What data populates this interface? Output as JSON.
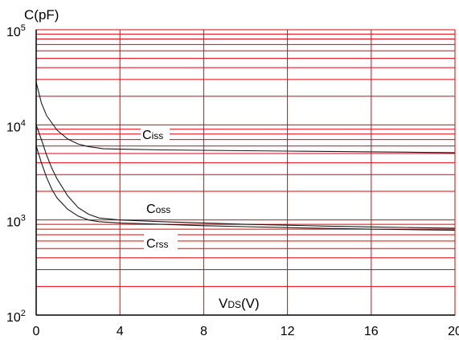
{
  "chart_data": {
    "type": "line",
    "y_scale": "log",
    "title": "",
    "ylabel": "C(pF)",
    "xlabel": "VDS(V)",
    "xlabel_main": "V",
    "xlabel_sub": "DS",
    "xlabel_unit": "(V)",
    "xlim": [
      0,
      20
    ],
    "ylim": [
      100,
      100000
    ],
    "x_ticks": [
      0,
      4,
      8,
      12,
      16,
      20
    ],
    "x_tick_labels": [
      "0",
      "4",
      "8",
      "12",
      "16",
      "20"
    ],
    "y_ticks": [
      100,
      1000,
      10000,
      100000
    ],
    "y_tick_labels": [
      {
        "base": "10",
        "exp": "2"
      },
      {
        "base": "10",
        "exp": "3"
      },
      {
        "base": "10",
        "exp": "4"
      },
      {
        "base": "10",
        "exp": "5"
      }
    ],
    "grid": true,
    "grid_color": "#e8000b",
    "line_color": "#1a1a1a",
    "series": [
      {
        "name": "Ciss",
        "label_main": "C",
        "label_sub": "iss",
        "x": [
          0,
          0.25,
          0.5,
          1,
          1.5,
          2,
          2.5,
          3,
          3.2,
          4,
          6,
          8,
          10,
          12,
          14,
          16,
          18,
          20
        ],
        "values": [
          28000,
          17000,
          12500,
          8800,
          7100,
          6300,
          5900,
          5700,
          5600,
          5550,
          5450,
          5400,
          5350,
          5300,
          5250,
          5200,
          5150,
          5100
        ]
      },
      {
        "name": "Coss",
        "label_main": "C",
        "label_sub": "oss",
        "x": [
          0,
          0.25,
          0.5,
          0.75,
          1,
          1.5,
          2,
          2.5,
          3,
          4,
          6,
          8,
          10,
          12,
          14,
          16,
          18,
          20
        ],
        "values": [
          10000,
          7000,
          4800,
          3500,
          2700,
          1800,
          1350,
          1150,
          1050,
          1000,
          960,
          930,
          900,
          880,
          860,
          845,
          830,
          820
        ]
      },
      {
        "name": "Crss",
        "label_main": "C",
        "label_sub": "rss",
        "x": [
          0,
          0.25,
          0.5,
          0.75,
          1,
          1.5,
          2,
          2.5,
          3,
          4,
          6,
          8,
          10,
          12,
          14,
          16,
          18,
          20
        ],
        "values": [
          6000,
          4000,
          2800,
          2100,
          1700,
          1300,
          1100,
          1000,
          960,
          930,
          900,
          870,
          850,
          830,
          815,
          800,
          790,
          780
        ]
      }
    ]
  }
}
